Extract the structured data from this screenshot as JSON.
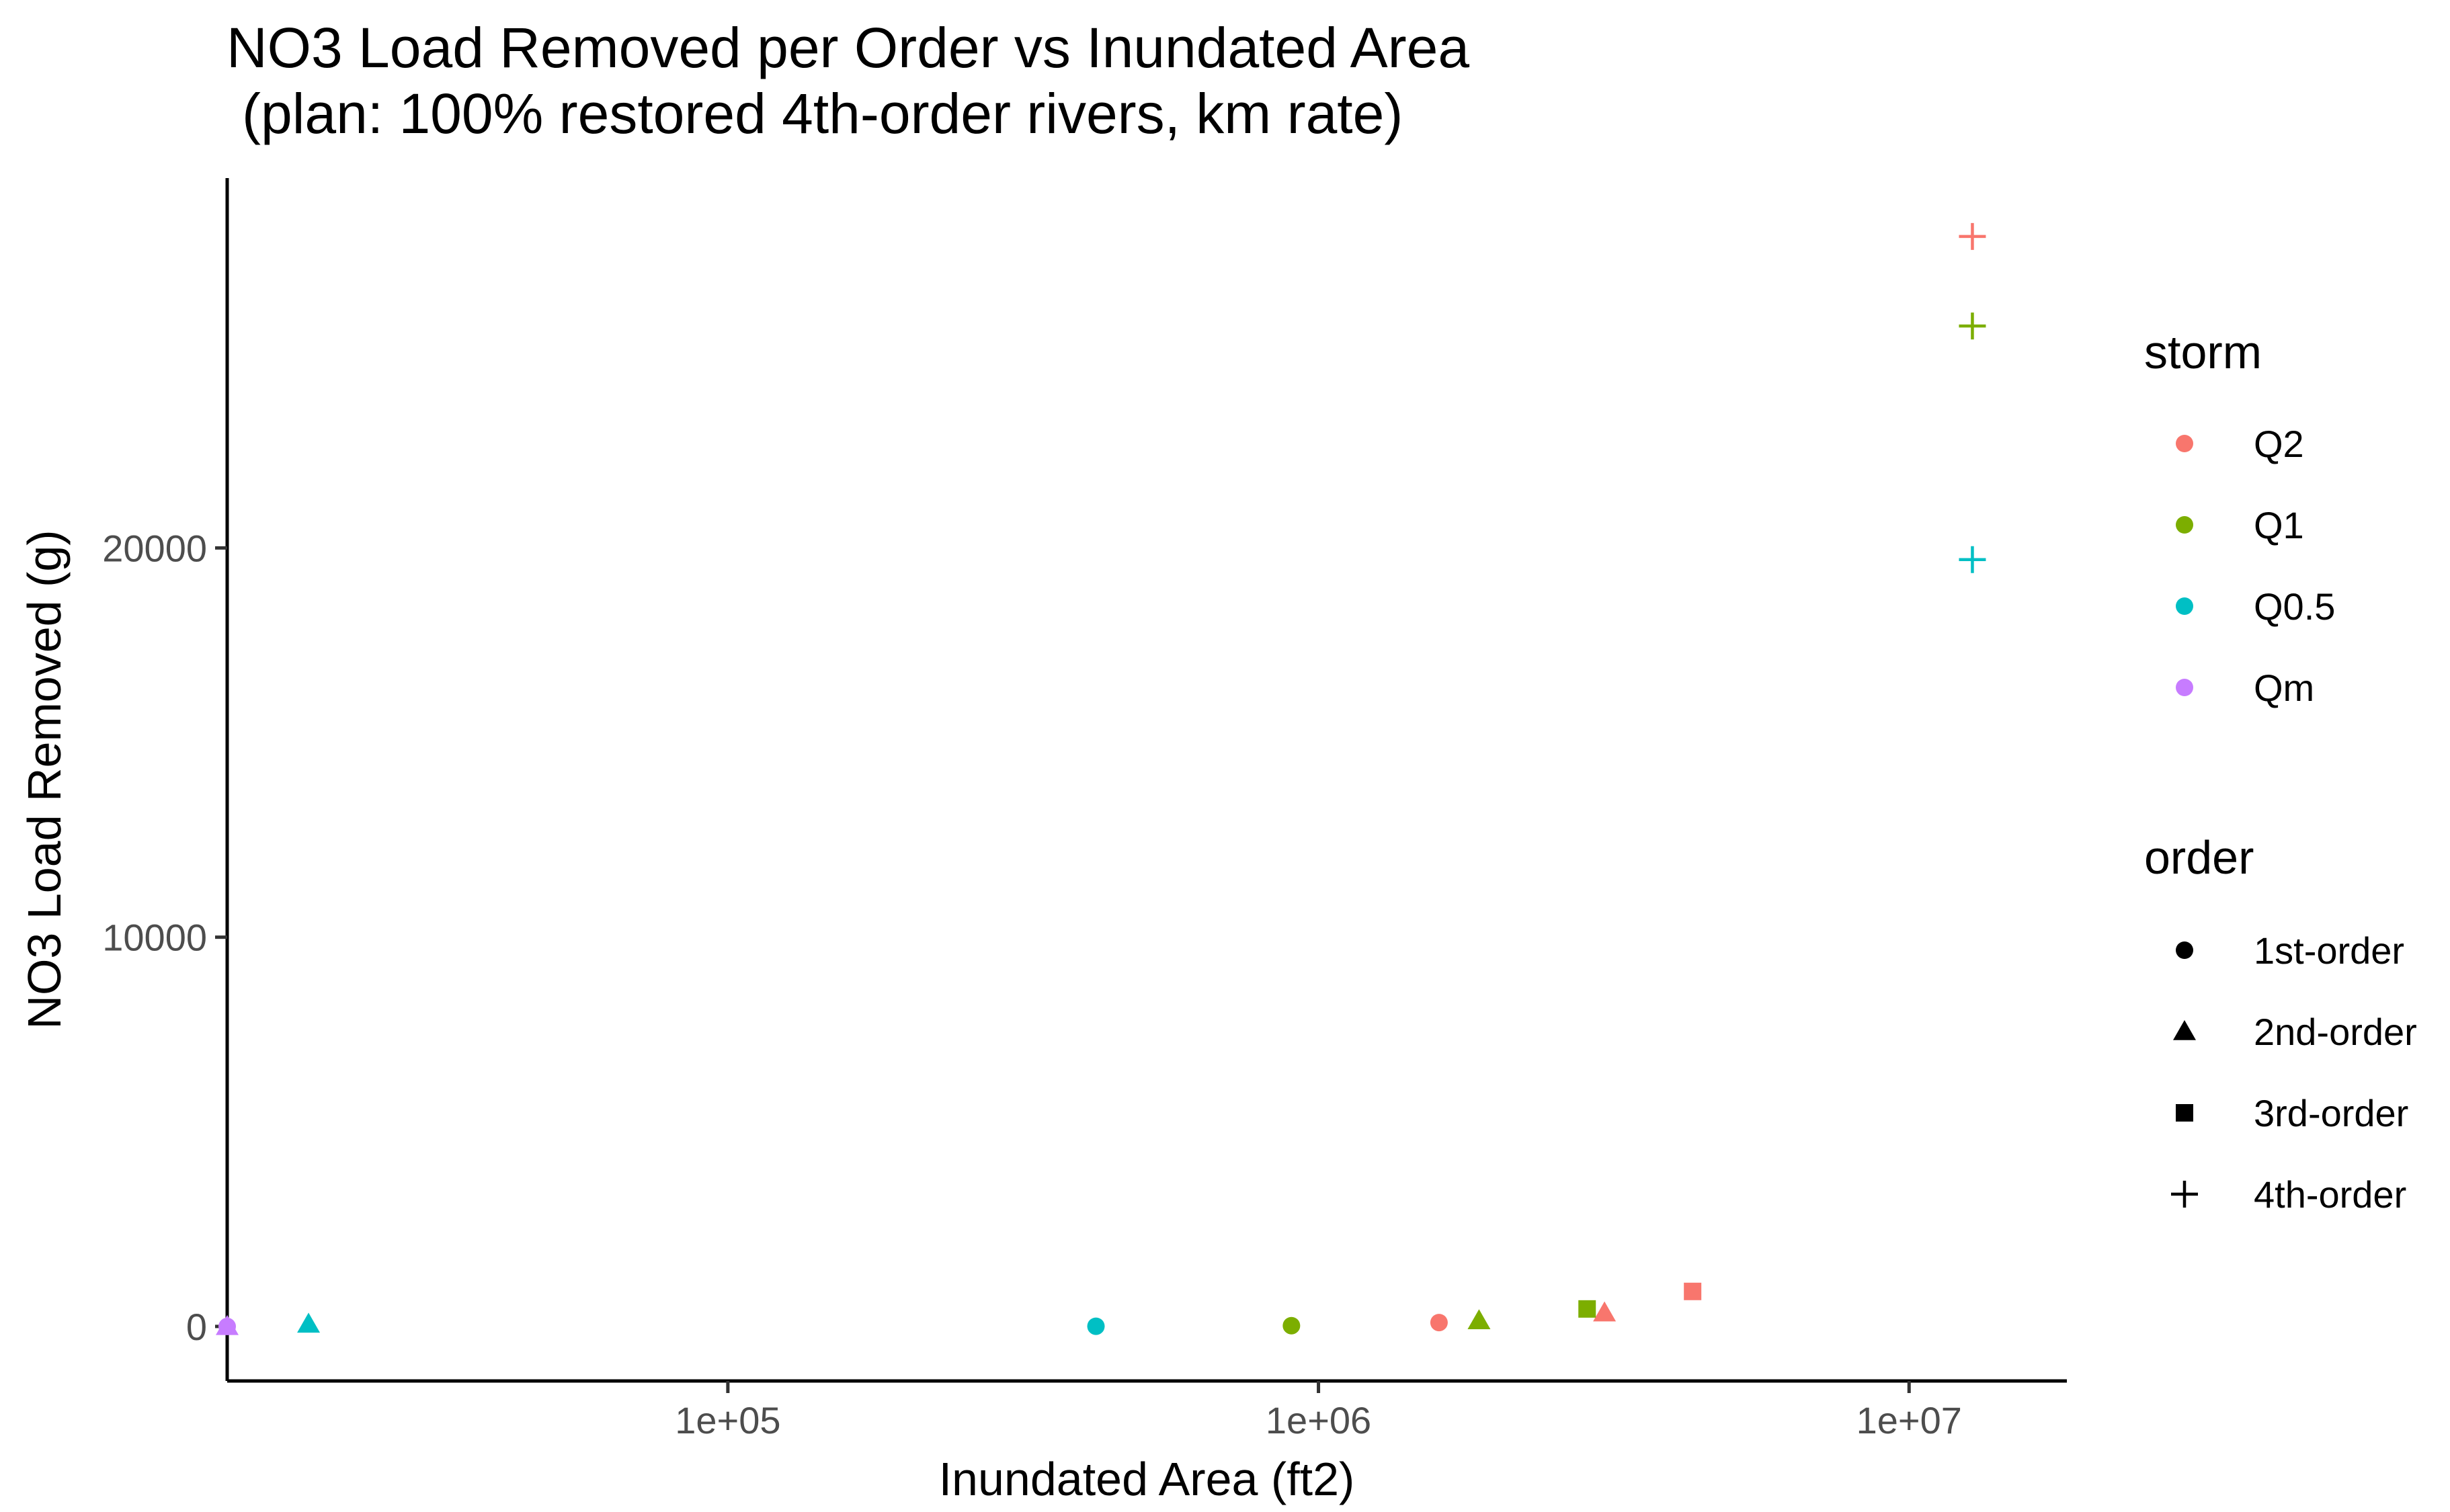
{
  "chart_data": {
    "type": "scatter",
    "title": "NO3 Load Removed per Order vs Inundated Area",
    "subtitle": "(plan: 100% restored 4th-order rivers, km rate)",
    "xlabel": "Inundated Area (ft2)",
    "ylabel": "NO3 Load Removed (g)",
    "x_scale": "log10",
    "xlim": [
      14200,
      18500000
    ],
    "ylim": [
      -1400,
      29500
    ],
    "x_ticks": [
      100000,
      1000000,
      10000000
    ],
    "x_tick_labels": [
      "1e+05",
      "1e+06",
      "1e+07"
    ],
    "y_ticks": [
      0,
      10000,
      20000
    ],
    "y_tick_labels": [
      "0",
      "10000",
      "20000"
    ],
    "grid": false,
    "legend_placement": "right",
    "legends": {
      "color": {
        "title": "storm",
        "items": [
          {
            "label": "Q2",
            "color": "#F8766D"
          },
          {
            "label": "Q1",
            "color": "#7CAE00"
          },
          {
            "label": "Q0.5",
            "color": "#00BFC4"
          },
          {
            "label": "Qm",
            "color": "#C77CFF"
          }
        ]
      },
      "shape": {
        "title": "order",
        "items": [
          {
            "label": "1st-order",
            "shape": "circle"
          },
          {
            "label": "2nd-order",
            "shape": "triangle"
          },
          {
            "label": "3rd-order",
            "shape": "square"
          },
          {
            "label": "4th-order",
            "shape": "plus"
          }
        ]
      }
    },
    "points": [
      {
        "storm": "Q2",
        "order": "1st-order",
        "x": 1600000,
        "y": 100
      },
      {
        "storm": "Q2",
        "order": "2nd-order",
        "x": 3050000,
        "y": 350
      },
      {
        "storm": "Q2",
        "order": "3rd-order",
        "x": 4300000,
        "y": 900
      },
      {
        "storm": "Q2",
        "order": "4th-order",
        "x": 12800000,
        "y": 28000
      },
      {
        "storm": "Q1",
        "order": "1st-order",
        "x": 900000,
        "y": 20
      },
      {
        "storm": "Q1",
        "order": "2nd-order",
        "x": 1870000,
        "y": 150
      },
      {
        "storm": "Q1",
        "order": "3rd-order",
        "x": 2850000,
        "y": 450
      },
      {
        "storm": "Q1",
        "order": "4th-order",
        "x": 12800000,
        "y": 25700
      },
      {
        "storm": "Q0.5",
        "order": "1st-order",
        "x": 420000,
        "y": 5
      },
      {
        "storm": "Q0.5",
        "order": "2nd-order",
        "x": 19500,
        "y": 60
      },
      {
        "storm": "Q0.5",
        "order": "4th-order",
        "x": 12800000,
        "y": 19700
      },
      {
        "storm": "Qm",
        "order": "1st-order",
        "x": 14200,
        "y": 0
      },
      {
        "storm": "Qm",
        "order": "2nd-order",
        "x": 14200,
        "y": 0
      }
    ]
  }
}
